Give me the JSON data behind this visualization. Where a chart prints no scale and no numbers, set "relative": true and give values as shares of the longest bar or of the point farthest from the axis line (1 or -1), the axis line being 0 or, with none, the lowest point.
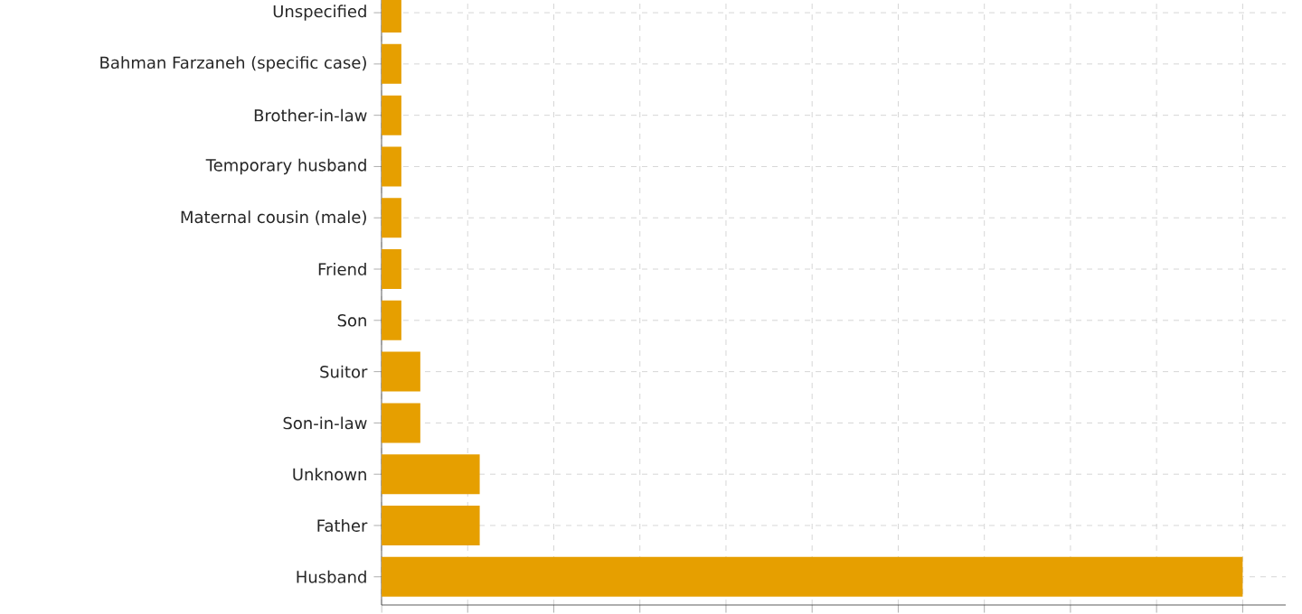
{
  "chart_data": {
    "type": "bar",
    "orientation": "horizontal",
    "relative": true,
    "grid": true,
    "color": "#e69f00",
    "categories": [
      "Unspecified",
      "Bahman Farzaneh (specific case)",
      "Brother-in-law",
      "Temporary husband",
      "Maternal cousin (male)",
      "Friend",
      "Son",
      "Suitor",
      "Son-in-law",
      "Unknown",
      "Father",
      "Husband"
    ],
    "values": [
      0.023,
      0.023,
      0.023,
      0.023,
      0.023,
      0.023,
      0.023,
      0.045,
      0.045,
      0.114,
      0.114,
      1
    ]
  }
}
